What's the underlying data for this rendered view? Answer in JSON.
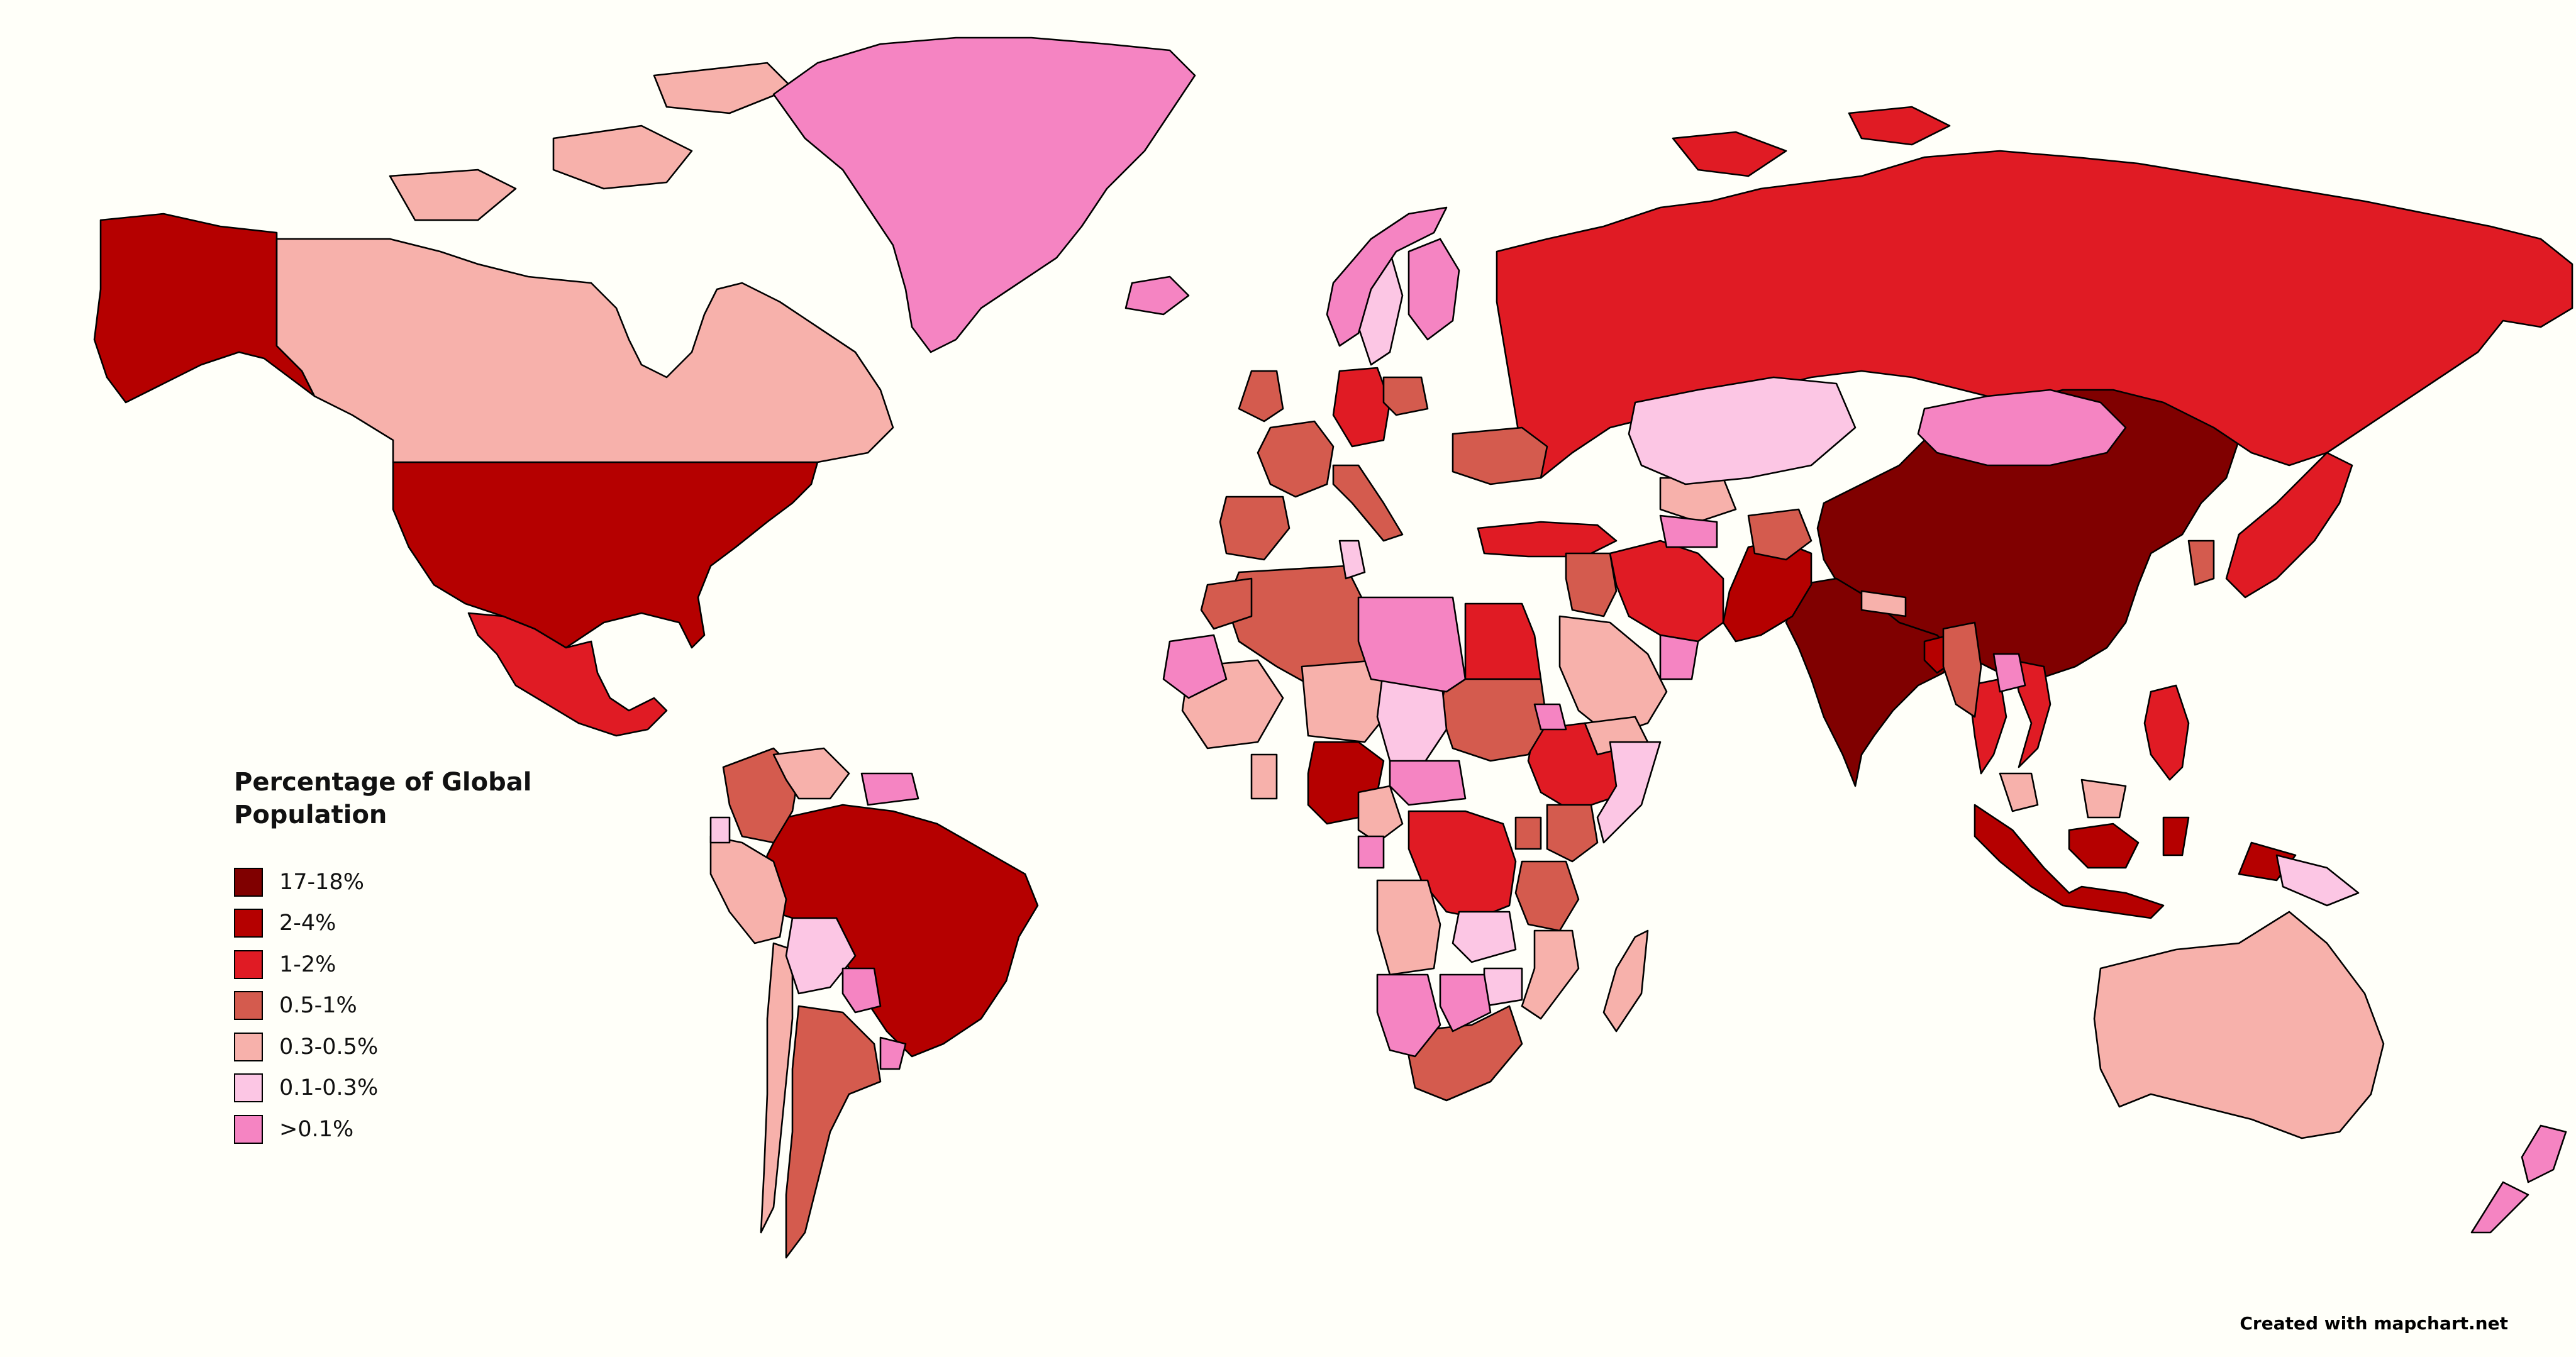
{
  "legend": {
    "title": "Percentage of Global Population",
    "items": [
      {
        "label": "17-18%",
        "color": "#800000"
      },
      {
        "label": "2-4%",
        "color": "#b50000"
      },
      {
        "label": "1-2%",
        "color": "#e01b24"
      },
      {
        "label": "0.5-1%",
        "color": "#d45b4e"
      },
      {
        "label": "0.3-0.5%",
        "color": "#f7b1ab"
      },
      {
        "label": "0.1-0.3%",
        "color": "#fcc6e4"
      },
      {
        "label": ">0.1%",
        "color": "#f584c2"
      }
    ]
  },
  "credit": "Created with mapchart.net",
  "map": {
    "background": "#fffff9",
    "regions": [
      {
        "name": "China",
        "class": "17-18%"
      },
      {
        "name": "India",
        "class": "17-18%"
      },
      {
        "name": "United States",
        "class": "2-4%"
      },
      {
        "name": "Alaska",
        "class": "2-4%"
      },
      {
        "name": "Brazil",
        "class": "2-4%"
      },
      {
        "name": "Pakistan",
        "class": "2-4%"
      },
      {
        "name": "Bangladesh",
        "class": "2-4%"
      },
      {
        "name": "Nigeria",
        "class": "2-4%"
      },
      {
        "name": "Indonesia",
        "class": "2-4%"
      },
      {
        "name": "Russia",
        "class": "1-2%"
      },
      {
        "name": "Mexico",
        "class": "1-2%"
      },
      {
        "name": "Japan",
        "class": "1-2%"
      },
      {
        "name": "Philippines",
        "class": "1-2%"
      },
      {
        "name": "Ethiopia",
        "class": "1-2%"
      },
      {
        "name": "Egypt",
        "class": "1-2%"
      },
      {
        "name": "DR Congo",
        "class": "1-2%"
      },
      {
        "name": "Turkey",
        "class": "1-2%"
      },
      {
        "name": "Iran",
        "class": "1-2%"
      },
      {
        "name": "Germany",
        "class": "1-2%"
      },
      {
        "name": "Vietnam",
        "class": "1-2%"
      },
      {
        "name": "Thailand",
        "class": "1-2%"
      },
      {
        "name": "France",
        "class": "0.5-1%"
      },
      {
        "name": "United Kingdom",
        "class": "0.5-1%"
      },
      {
        "name": "Italy",
        "class": "0.5-1%"
      },
      {
        "name": "Spain",
        "class": "0.5-1%"
      },
      {
        "name": "Ukraine",
        "class": "0.5-1%"
      },
      {
        "name": "Poland",
        "class": "0.5-1%"
      },
      {
        "name": "Colombia",
        "class": "0.5-1%"
      },
      {
        "name": "Argentina",
        "class": "0.5-1%"
      },
      {
        "name": "South Africa",
        "class": "0.5-1%"
      },
      {
        "name": "Tanzania",
        "class": "0.5-1%"
      },
      {
        "name": "Kenya",
        "class": "0.5-1%"
      },
      {
        "name": "Sudan",
        "class": "0.5-1%"
      },
      {
        "name": "Algeria",
        "class": "0.5-1%"
      },
      {
        "name": "Iraq",
        "class": "0.5-1%"
      },
      {
        "name": "Afghanistan",
        "class": "0.5-1%"
      },
      {
        "name": "Myanmar",
        "class": "0.5-1%"
      },
      {
        "name": "South Korea",
        "class": "0.5-1%"
      },
      {
        "name": "Uganda",
        "class": "0.5-1%"
      },
      {
        "name": "Morocco",
        "class": "0.5-1%"
      },
      {
        "name": "Canada",
        "class": "0.3-0.5%"
      },
      {
        "name": "Australia",
        "class": "0.3-0.5%"
      },
      {
        "name": "Saudi Arabia",
        "class": "0.3-0.5%"
      },
      {
        "name": "Peru",
        "class": "0.3-0.5%"
      },
      {
        "name": "Venezuela",
        "class": "0.3-0.5%"
      },
      {
        "name": "Angola",
        "class": "0.3-0.5%"
      },
      {
        "name": "Mozambique",
        "class": "0.3-0.5%"
      },
      {
        "name": "Madagascar",
        "class": "0.3-0.5%"
      },
      {
        "name": "Malaysia",
        "class": "0.3-0.5%"
      },
      {
        "name": "Uzbekistan",
        "class": "0.3-0.5%"
      },
      {
        "name": "Yemen",
        "class": "0.3-0.5%"
      },
      {
        "name": "Nepal",
        "class": "0.3-0.5%"
      },
      {
        "name": "Niger",
        "class": "0.3-0.5%"
      },
      {
        "name": "Mali",
        "class": "0.3-0.5%"
      },
      {
        "name": "Cameroon",
        "class": "0.3-0.5%"
      },
      {
        "name": "Ghana",
        "class": "0.3-0.5%"
      },
      {
        "name": "Chile",
        "class": "0.3-0.5%"
      },
      {
        "name": "Kazakhstan",
        "class": "0.1-0.3%"
      },
      {
        "name": "Bolivia",
        "class": "0.1-0.3%"
      },
      {
        "name": "Ecuador",
        "class": "0.1-0.3%"
      },
      {
        "name": "Chad",
        "class": "0.1-0.3%"
      },
      {
        "name": "Sweden",
        "class": "0.1-0.3%"
      },
      {
        "name": "Zambia",
        "class": "0.1-0.3%"
      },
      {
        "name": "Zimbabwe",
        "class": "0.1-0.3%"
      },
      {
        "name": "Somalia",
        "class": "0.1-0.3%"
      },
      {
        "name": "Papua New Guinea",
        "class": "0.1-0.3%"
      },
      {
        "name": "Tunisia",
        "class": "0.1-0.3%"
      },
      {
        "name": "Greenland",
        "class": ">0.1%"
      },
      {
        "name": "Mongolia",
        "class": ">0.1%"
      },
      {
        "name": "Libya",
        "class": ">0.1%"
      },
      {
        "name": "Namibia",
        "class": ">0.1%"
      },
      {
        "name": "Botswana",
        "class": ">0.1%"
      },
      {
        "name": "New Zealand",
        "class": ">0.1%"
      },
      {
        "name": "Norway",
        "class": ">0.1%"
      },
      {
        "name": "Finland",
        "class": ">0.1%"
      },
      {
        "name": "Iceland",
        "class": ">0.1%"
      },
      {
        "name": "Mauritania",
        "class": ">0.1%"
      },
      {
        "name": "Uruguay",
        "class": ">0.1%"
      },
      {
        "name": "Paraguay",
        "class": ">0.1%"
      },
      {
        "name": "Guyana",
        "class": ">0.1%"
      },
      {
        "name": "Central African Republic",
        "class": ">0.1%"
      },
      {
        "name": "Gabon",
        "class": ">0.1%"
      },
      {
        "name": "Laos",
        "class": ">0.1%"
      },
      {
        "name": "Turkmenistan",
        "class": ">0.1%"
      },
      {
        "name": "Oman",
        "class": ">0.1%"
      },
      {
        "name": "Eritrea",
        "class": ">0.1%"
      }
    ]
  }
}
